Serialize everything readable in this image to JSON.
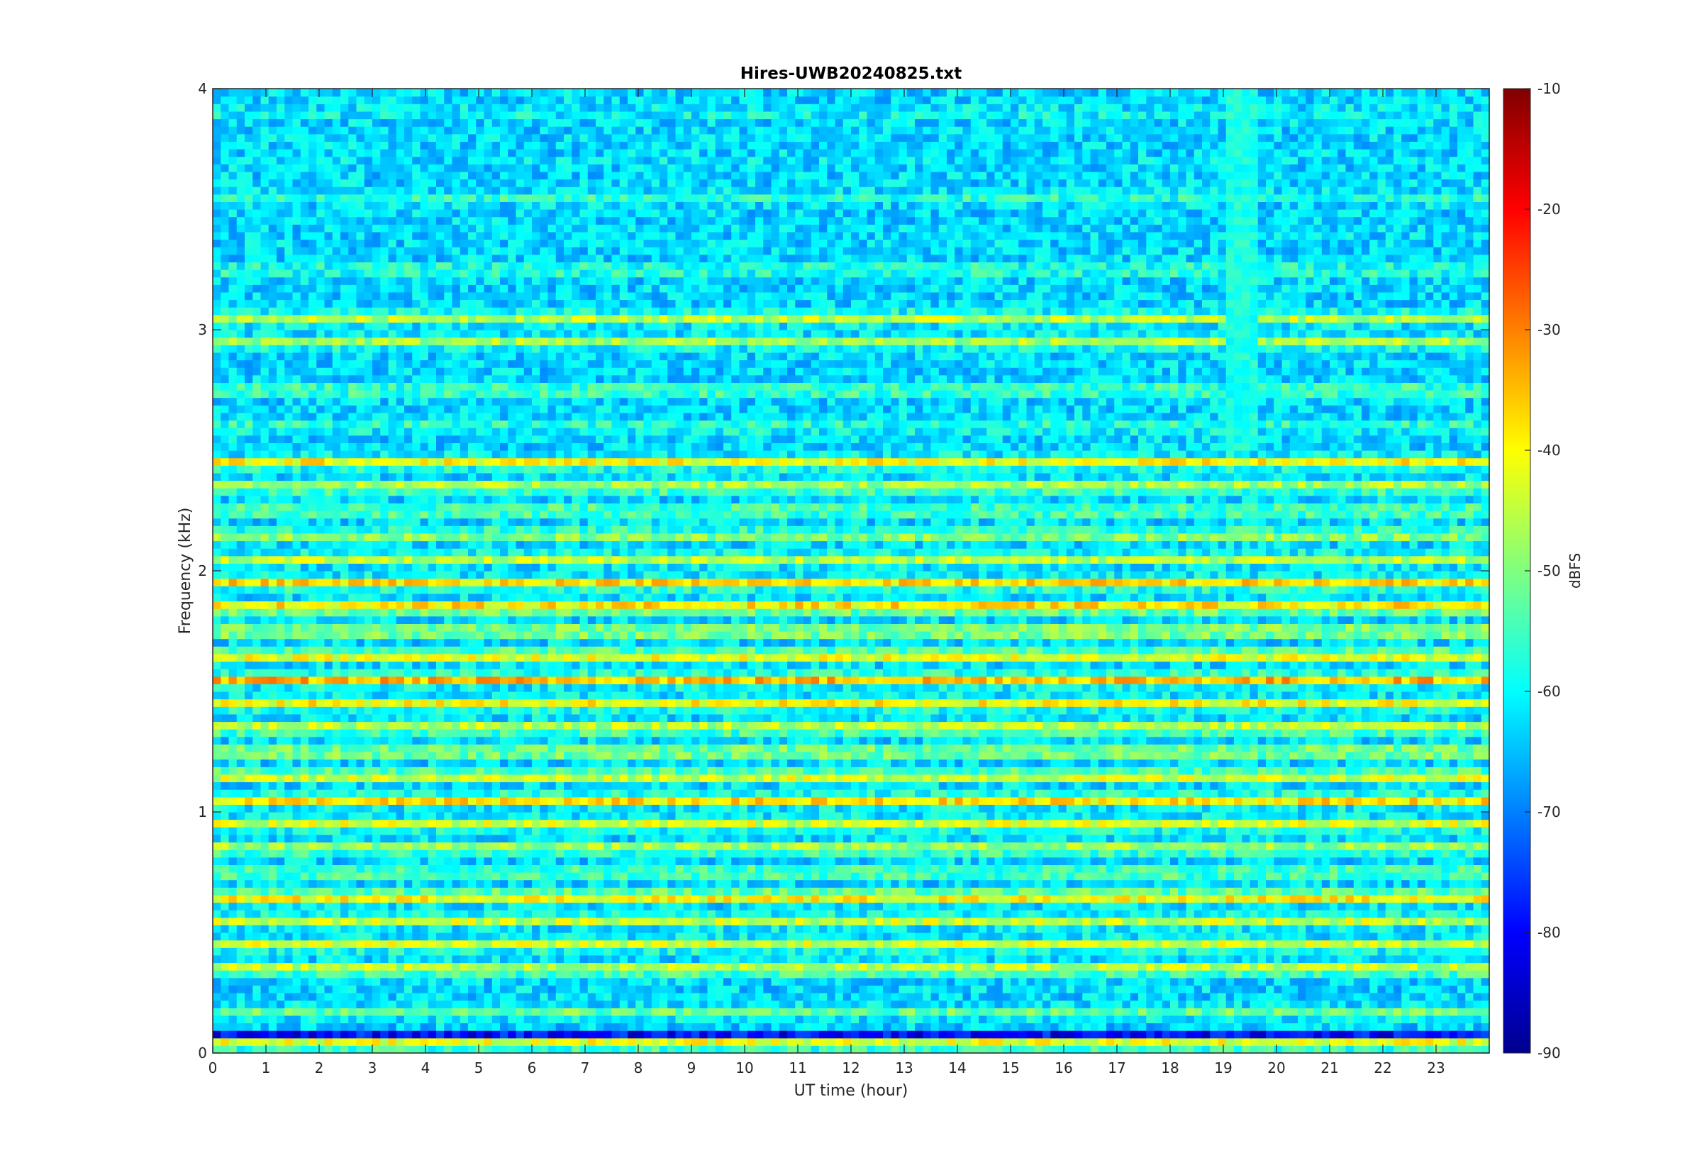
{
  "chart_data": {
    "type": "heatmap",
    "title": "Hires-UWB20240825.txt",
    "xlabel": "UT time (hour)",
    "ylabel": "Frequency (kHz)",
    "xlim": [
      0,
      24
    ],
    "ylim": [
      0,
      4
    ],
    "x_ticks": [
      "0",
      "1",
      "2",
      "3",
      "4",
      "5",
      "6",
      "7",
      "8",
      "9",
      "10",
      "11",
      "12",
      "13",
      "14",
      "15",
      "16",
      "17",
      "18",
      "19",
      "20",
      "21",
      "22",
      "23"
    ],
    "y_ticks": [
      "0",
      "1",
      "2",
      "3",
      "4"
    ],
    "colorbar": {
      "label": "dBFS",
      "range": [
        -90,
        -10
      ],
      "ticks": [
        "-90",
        "-80",
        "-70",
        "-60",
        "-50",
        "-40",
        "-30",
        "-20",
        "-10"
      ],
      "colormap": "jet"
    },
    "freq_bands_khz": [
      {
        "f": 0.04,
        "level": -40
      },
      {
        "f": 0.07,
        "level": -82
      },
      {
        "f": 0.17,
        "level": -52
      },
      {
        "f": 0.35,
        "level": -42
      },
      {
        "f": 0.45,
        "level": -43
      },
      {
        "f": 0.55,
        "level": -44
      },
      {
        "f": 0.65,
        "level": -36
      },
      {
        "f": 0.75,
        "level": -50
      },
      {
        "f": 0.85,
        "level": -45
      },
      {
        "f": 0.95,
        "level": -43
      },
      {
        "f": 1.05,
        "level": -38
      },
      {
        "f": 1.15,
        "level": -40
      },
      {
        "f": 1.25,
        "level": -44
      },
      {
        "f": 1.35,
        "level": -42
      },
      {
        "f": 1.45,
        "level": -40
      },
      {
        "f": 1.55,
        "level": -34
      },
      {
        "f": 1.65,
        "level": -38
      },
      {
        "f": 1.75,
        "level": -43
      },
      {
        "f": 1.85,
        "level": -34
      },
      {
        "f": 1.95,
        "level": -37
      },
      {
        "f": 2.05,
        "level": -45
      },
      {
        "f": 2.15,
        "level": -47
      },
      {
        "f": 2.25,
        "level": -50
      },
      {
        "f": 2.35,
        "level": -44
      },
      {
        "f": 2.45,
        "level": -40
      },
      {
        "f": 2.6,
        "level": -56
      },
      {
        "f": 2.75,
        "level": -52
      },
      {
        "f": 2.95,
        "level": -47
      },
      {
        "f": 3.05,
        "level": -45
      },
      {
        "f": 3.25,
        "level": -55
      },
      {
        "f": 3.55,
        "level": -57
      },
      {
        "f": 3.7,
        "level": -62
      },
      {
        "f": 3.9,
        "level": -60
      }
    ],
    "background_level": -63,
    "features": [
      {
        "type": "broadband-enhancement",
        "x_range": [
          19.0,
          19.7
        ],
        "f_range": [
          2.5,
          4.0
        ],
        "level": -58
      }
    ]
  }
}
